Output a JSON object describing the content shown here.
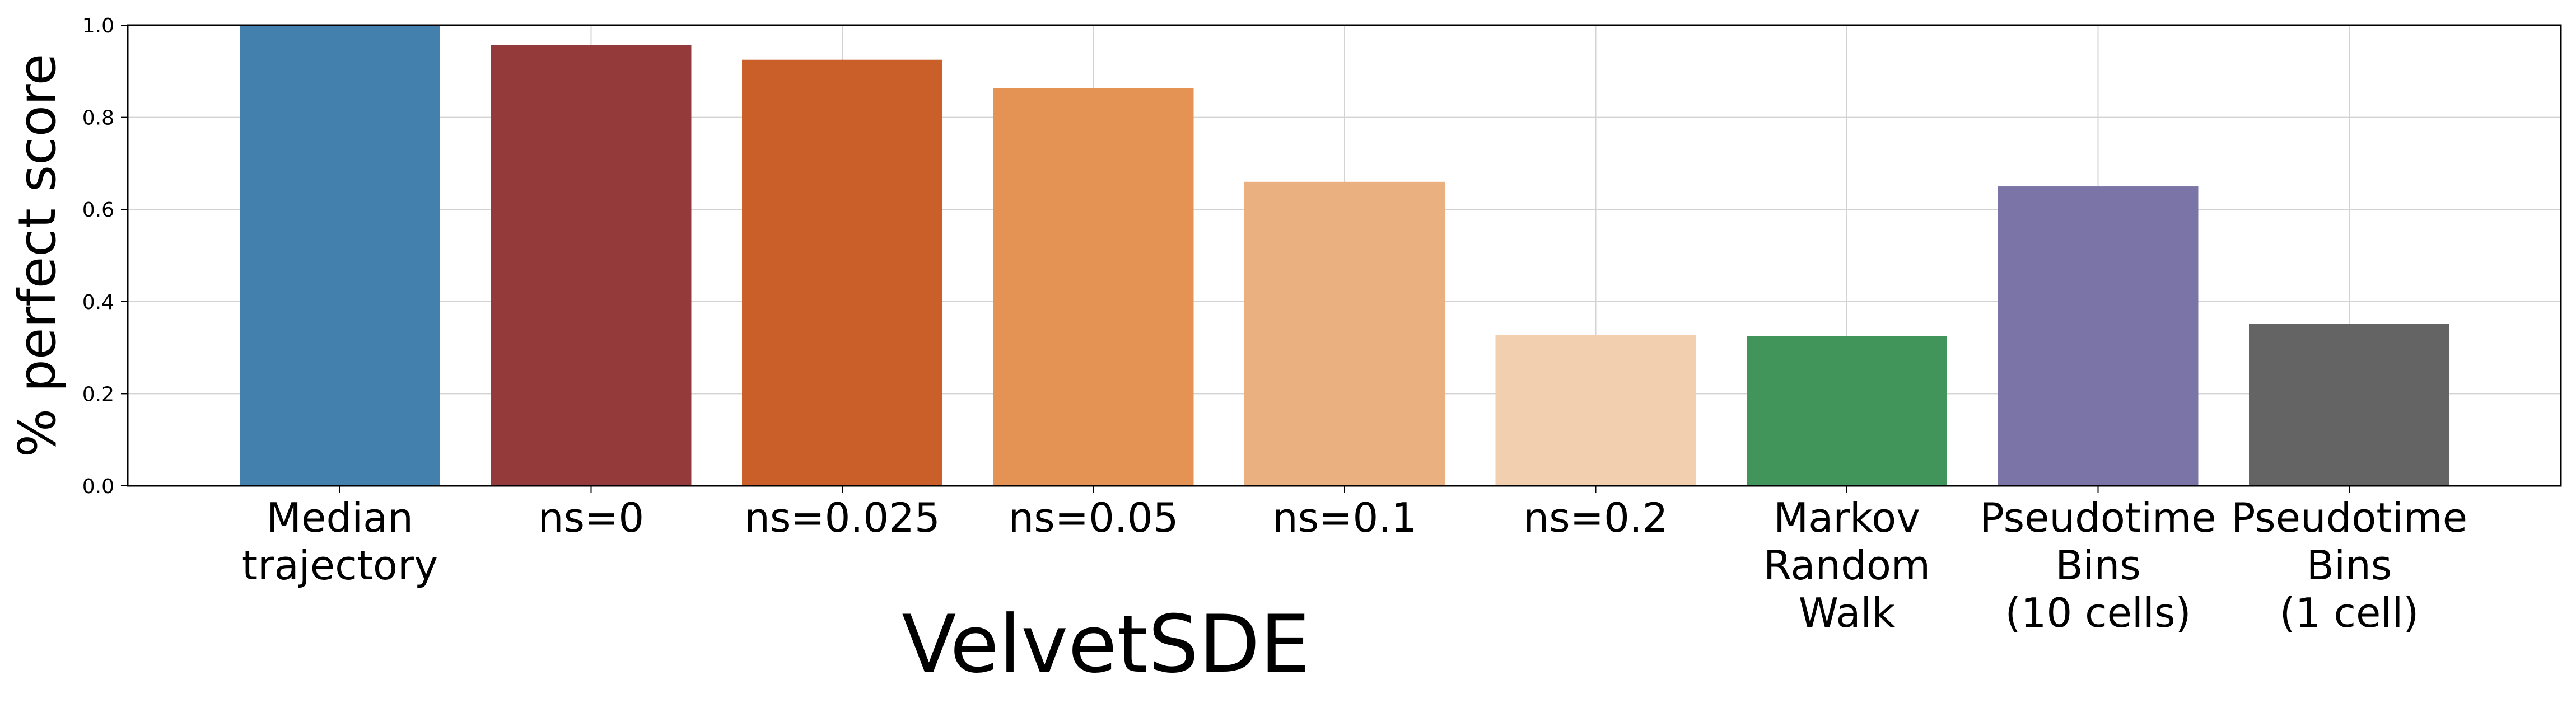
{
  "chart_data": {
    "type": "bar",
    "title": "",
    "xlabel": "",
    "ylabel": "% perfect score",
    "ylim": [
      0,
      1
    ],
    "yticks": [
      "0.0",
      "0.2",
      "0.4",
      "0.6",
      "0.8",
      "1.0"
    ],
    "grid": true,
    "categories": [
      [
        "Median",
        "trajectory"
      ],
      [
        "ns=0"
      ],
      [
        "ns=0.025"
      ],
      [
        "ns=0.05"
      ],
      [
        "ns=0.1"
      ],
      [
        "ns=0.2"
      ],
      [
        "Markov",
        "Random",
        "Walk"
      ],
      [
        "Pseudotime",
        "Bins",
        "(10 cells)"
      ],
      [
        "Pseudotime",
        "Bins",
        "(1 cell)"
      ]
    ],
    "values": [
      1.0,
      0.957,
      0.925,
      0.863,
      0.66,
      0.328,
      0.325,
      0.65,
      0.352
    ],
    "colors": [
      "#4380ad",
      "#953a3a",
      "#cb5f2a",
      "#e49355",
      "#ebb07f",
      "#f2cfae",
      "#42955a",
      "#7b75a7",
      "#646464"
    ],
    "group_annotation": "VelvetSDE"
  }
}
